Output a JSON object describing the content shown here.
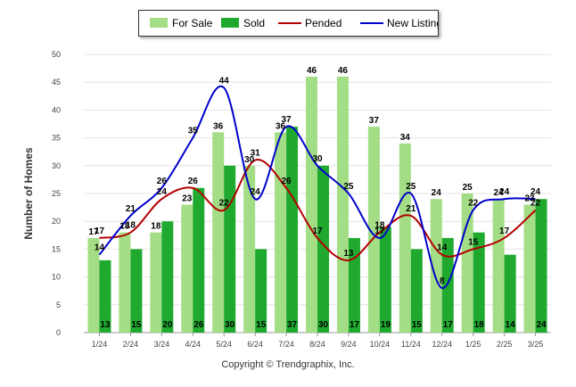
{
  "chart_data": {
    "type": "bar",
    "ylabel": "Number of Homes",
    "xlabel": "",
    "ylim": [
      0,
      50
    ],
    "yticks": [
      0,
      5,
      10,
      15,
      20,
      25,
      30,
      35,
      40,
      45,
      50
    ],
    "grid": true,
    "legend_position": "top-center",
    "footer": "Copyright © Trendgraphix, Inc.",
    "categories": [
      "1/24",
      "2/24",
      "3/24",
      "4/24",
      "5/24",
      "6/24",
      "7/24",
      "8/24",
      "9/24",
      "10/24",
      "11/24",
      "12/24",
      "1/25",
      "2/25",
      "3/25"
    ],
    "series": [
      {
        "name": "For Sale",
        "kind": "bar",
        "color": "#a3dd85",
        "values": [
          17,
          18,
          18,
          23,
          36,
          30,
          36,
          46,
          46,
          37,
          34,
          24,
          25,
          24,
          23
        ]
      },
      {
        "name": "Sold",
        "kind": "bar",
        "color": "#1faa2f",
        "values": [
          13,
          15,
          20,
          26,
          30,
          15,
          37,
          30,
          17,
          19,
          15,
          17,
          18,
          14,
          24
        ]
      },
      {
        "name": "Pended",
        "kind": "line",
        "color": "#b30000",
        "values": [
          17,
          18,
          24,
          26,
          22,
          31,
          26,
          17,
          13,
          18,
          21,
          14,
          15,
          17,
          22
        ]
      },
      {
        "name": "New Listing",
        "kind": "line",
        "color": "#0000cc",
        "values": [
          14,
          21,
          26,
          35,
          44,
          24,
          37,
          30,
          25,
          17,
          25,
          8,
          22,
          24,
          24
        ]
      }
    ]
  }
}
